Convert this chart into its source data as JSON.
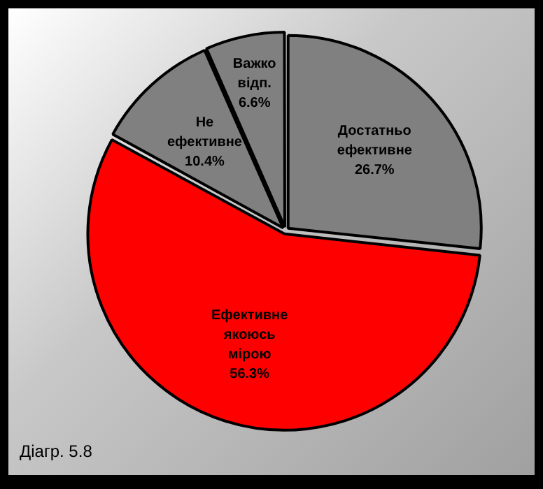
{
  "chart_data": {
    "type": "pie",
    "categories": [
      "Достатньо ефективне",
      "Ефективне якоюсь мірою",
      "Не ефективне",
      "Важко відп."
    ],
    "values": [
      26.7,
      56.3,
      10.4,
      6.6
    ],
    "value_labels": [
      "26.7%",
      "56.3%",
      "10.4%",
      "6.6%"
    ],
    "colors": [
      "#808080",
      "#ff0000",
      "#808080",
      "#808080"
    ],
    "legend": false,
    "annotations": [
      "Діагр. 5.8"
    ]
  }
}
